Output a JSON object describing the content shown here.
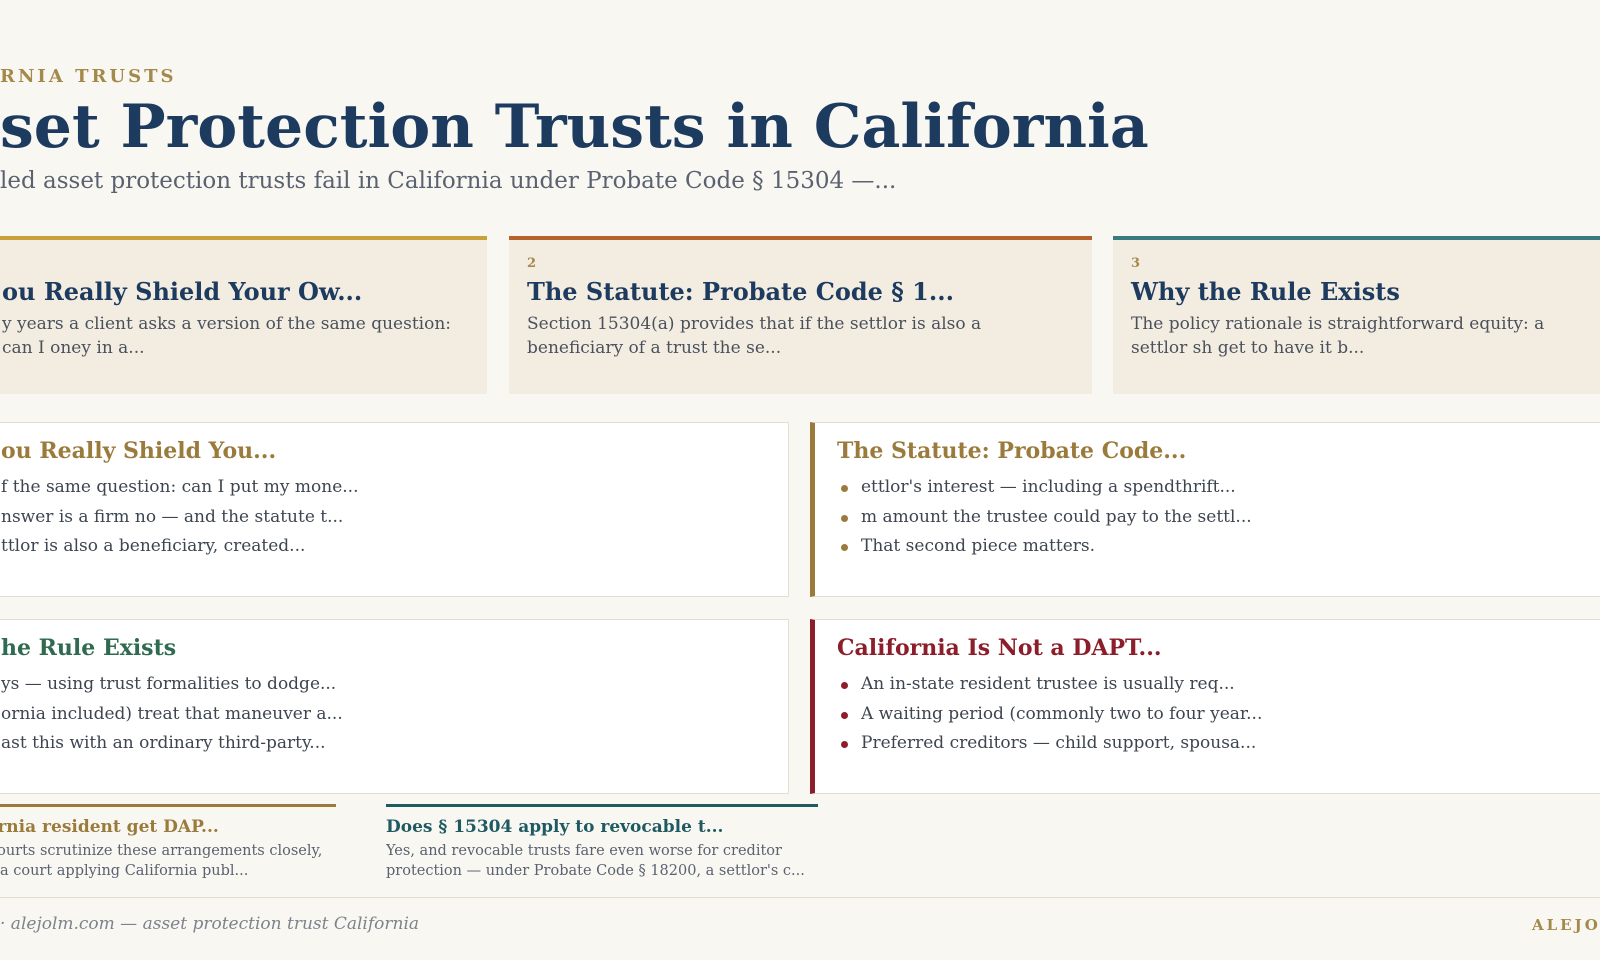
{
  "header": {
    "eyebrow": "RNIA TRUSTS",
    "title": "set Protection Trusts in California",
    "subtitle": "led asset protection trusts fail in California under Probate Code § 15304 —..."
  },
  "cards": [
    {
      "number": "",
      "title": "ou Really Shield Your Ow...",
      "text": "y years a client asks a version of the same question: can I oney in a...",
      "accent": "#c9a13b"
    },
    {
      "number": "2",
      "title": "The Statute: Probate Code § 1...",
      "text": "Section 15304(a) provides that if the settlor is also a beneficiary of a trust the se...",
      "accent": "#b5622f"
    },
    {
      "number": "3",
      "title": "Why the Rule Exists",
      "text": "The policy rationale is straightforward equity: a settlor sh get to have it b...",
      "accent": "#3a7a80"
    }
  ],
  "panels": [
    {
      "title": "ou Really Shield You...",
      "title_color": "#9a7b3c",
      "accent": "",
      "lines": [
        "f the same question: can I put my mone...",
        "nswer is a firm no — and the statute t...",
        "ttlor is also a beneficiary, created..."
      ]
    },
    {
      "title": "The Statute: Probate Code...",
      "title_color": "#9a7b3c",
      "accent": "#9a7b3c",
      "lines": [
        "ettlor's interest — including a spendthrift...",
        "m amount the trustee could pay to the settl...",
        "That second piece matters."
      ]
    },
    {
      "title": "he Rule Exists",
      "title_color": "#2f6b4f",
      "accent": "",
      "lines": [
        "ys — using trust formalities to dodge...",
        "ornia included) treat that maneuver a...",
        "ast this with an ordinary third-party..."
      ]
    },
    {
      "title": "California Is Not a DAPT...",
      "title_color": "#8b1e2a",
      "accent": "#8b1e2a",
      "lines": [
        "An in-state resident trustee is usually req...",
        "A waiting period (commonly two to four year...",
        "Preferred creditors — child support, spousa..."
      ]
    }
  ],
  "faqs": [
    {
      "question": "ornia resident get DAP...",
      "answer": "Courts scrutinize these arrangements closely, nia court applying California publ...",
      "color": "#9a7b3c"
    },
    {
      "question": "Does § 15304 apply to revocable t...",
      "answer": "Yes, and revocable trusts fare even worse for creditor protection — under Probate Code § 18200, a settlor's c...",
      "color": "#1f5a63"
    }
  ],
  "footer": {
    "left": "· alejolm.com — asset protection trust California",
    "right": "ALEJO"
  }
}
